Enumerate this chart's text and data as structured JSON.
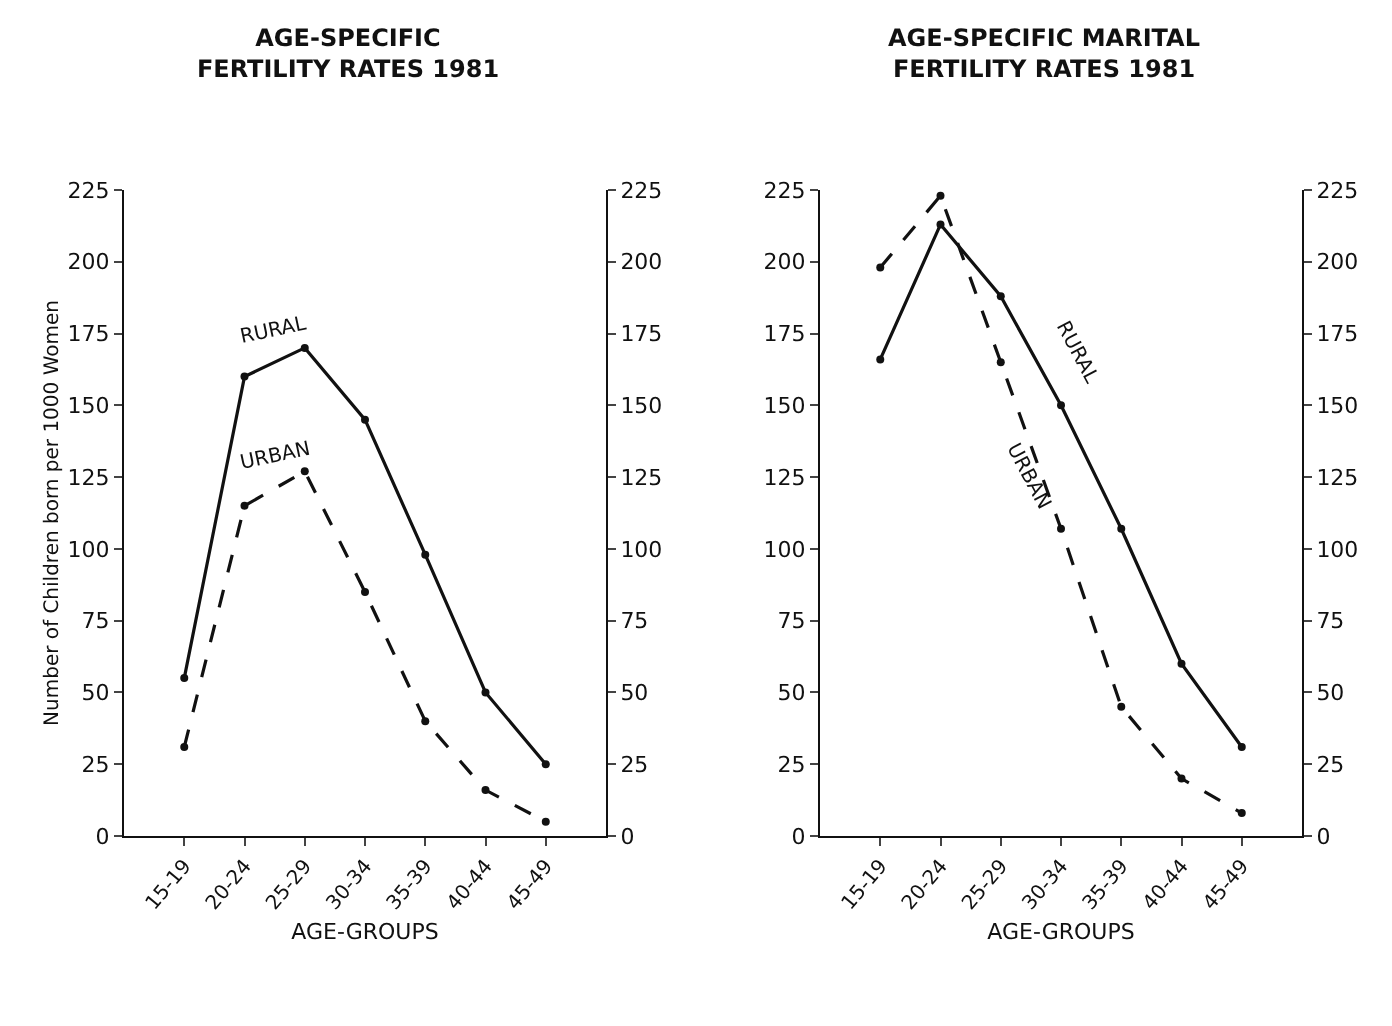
{
  "chart_data": [
    {
      "type": "line",
      "title": "AGE-SPECIFIC\nFERTILITY RATES 1981",
      "xlabel": "AGE-GROUPS",
      "ylabel": "Number of Children born per 1000 Women",
      "categories": [
        "15-19",
        "20-24",
        "25-29",
        "30-34",
        "35-39",
        "40-44",
        "45-49"
      ],
      "series": [
        {
          "name": "RURAL",
          "color": "#111111",
          "line_style": "solid",
          "values": [
            55,
            160,
            170,
            145,
            98,
            50,
            25
          ]
        },
        {
          "name": "URBAN",
          "color": "#111111",
          "line_style": "dashed",
          "values": [
            31,
            115,
            127,
            85,
            40,
            16,
            5
          ]
        }
      ],
      "ylim": [
        0,
        225
      ],
      "yticks": [
        0,
        25,
        50,
        75,
        100,
        125,
        150,
        175,
        200,
        225
      ],
      "y2lim": [
        0,
        225
      ],
      "y2ticks": [
        0,
        25,
        50,
        75,
        100,
        125,
        150,
        175,
        200,
        225
      ],
      "marker": "circle",
      "grid": false
    },
    {
      "type": "line",
      "title": "AGE-SPECIFIC MARITAL\nFERTILITY RATES 1981",
      "xlabel": "AGE-GROUPS",
      "categories": [
        "15-19",
        "20-24",
        "25-29",
        "30-34",
        "35-39",
        "40-44",
        "45-49"
      ],
      "series": [
        {
          "name": "RURAL",
          "color": "#111111",
          "line_style": "solid",
          "values": [
            166,
            213,
            188,
            150,
            107,
            60,
            31
          ]
        },
        {
          "name": "URBAN",
          "color": "#111111",
          "line_style": "dashed",
          "values": [
            198,
            223,
            165,
            107,
            45,
            20,
            8
          ]
        }
      ],
      "ylim": [
        0,
        225
      ],
      "yticks": [
        0,
        25,
        50,
        75,
        100,
        125,
        150,
        175,
        200,
        225
      ],
      "y2lim": [
        0,
        225
      ],
      "y2ticks": [
        0,
        25,
        50,
        75,
        100,
        125,
        150,
        175,
        200,
        225
      ],
      "marker": "circle",
      "grid": false
    }
  ]
}
